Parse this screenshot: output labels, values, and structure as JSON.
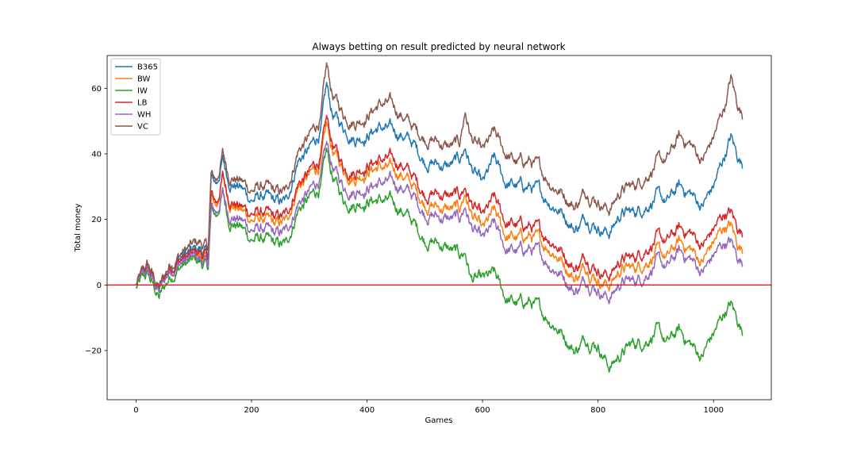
{
  "chart_data": {
    "type": "line",
    "title": "Always betting on result predicted by neural network",
    "xlabel": "Games",
    "ylabel": "Total money",
    "xlim": [
      -50,
      1100
    ],
    "ylim": [
      -35,
      70
    ],
    "xticks": [
      0,
      200,
      400,
      600,
      800,
      1000
    ],
    "yticks": [
      -20,
      0,
      20,
      40,
      60
    ],
    "ytick_labels": [
      "−20",
      "0",
      "20",
      "40",
      "60"
    ],
    "grid": false,
    "legend_position": "top-left",
    "reference_line": {
      "y": 0,
      "color": "#d62728"
    },
    "series": [
      {
        "name": "B365",
        "color": "#1f77b4",
        "x": [
          0,
          20,
          40,
          60,
          80,
          100,
          110,
          125,
          130,
          140,
          150,
          160,
          180,
          200,
          220,
          240,
          260,
          280,
          300,
          320,
          330,
          340,
          360,
          380,
          400,
          420,
          440,
          460,
          480,
          500,
          520,
          540,
          560,
          570,
          580,
          600,
          620,
          640,
          660,
          680,
          700,
          720,
          740,
          760,
          780,
          800,
          820,
          840,
          860,
          880,
          900,
          920,
          940,
          960,
          980,
          990,
          1000,
          1020,
          1030,
          1040,
          1050
        ],
        "y": [
          0,
          5,
          -2,
          6,
          9,
          10,
          11,
          9,
          32,
          31,
          38,
          32,
          30,
          26,
          27,
          25,
          25,
          38,
          41,
          47,
          60,
          52,
          48,
          45,
          46,
          48,
          47,
          46,
          43,
          38,
          37,
          36,
          38,
          42,
          36,
          30,
          38,
          31,
          30,
          30,
          28,
          25,
          22,
          17,
          21,
          18,
          16,
          22,
          22,
          24,
          27,
          25,
          30,
          28,
          24,
          27,
          30,
          40,
          45,
          40,
          37
        ]
      },
      {
        "name": "BW",
        "color": "#ff7f0e",
        "x": [
          0,
          20,
          40,
          60,
          80,
          100,
          110,
          125,
          130,
          140,
          150,
          160,
          180,
          200,
          220,
          240,
          260,
          280,
          300,
          320,
          330,
          340,
          360,
          380,
          400,
          420,
          440,
          460,
          480,
          500,
          520,
          540,
          560,
          570,
          580,
          600,
          620,
          640,
          660,
          680,
          700,
          720,
          740,
          760,
          780,
          800,
          820,
          840,
          860,
          880,
          900,
          920,
          940,
          960,
          980,
          990,
          1000,
          1020,
          1030,
          1040,
          1050
        ],
        "y": [
          0,
          4,
          -2,
          5,
          8,
          9,
          9,
          7,
          26,
          24,
          33,
          26,
          23,
          20,
          20,
          18,
          19,
          30,
          33,
          37,
          48,
          41,
          35,
          33,
          35,
          36,
          35,
          34,
          30,
          25,
          24,
          23,
          23,
          28,
          22,
          16,
          22,
          15,
          14,
          15,
          13,
          11,
          7,
          2,
          6,
          2,
          0,
          5,
          5,
          7,
          10,
          8,
          13,
          11,
          7,
          10,
          13,
          18,
          18,
          13,
          11
        ]
      },
      {
        "name": "IW",
        "color": "#2ca02c",
        "x": [
          0,
          20,
          40,
          60,
          80,
          100,
          110,
          125,
          130,
          140,
          150,
          160,
          180,
          200,
          220,
          240,
          260,
          280,
          300,
          320,
          330,
          340,
          360,
          380,
          400,
          420,
          440,
          460,
          480,
          500,
          520,
          540,
          560,
          570,
          580,
          600,
          620,
          640,
          660,
          680,
          700,
          720,
          740,
          760,
          780,
          800,
          820,
          840,
          860,
          880,
          900,
          920,
          940,
          960,
          980,
          990,
          1000,
          1020,
          1030,
          1040,
          1050
        ],
        "y": [
          -1,
          3,
          -4,
          3,
          6,
          7,
          7,
          5,
          22,
          21,
          28,
          20,
          18,
          14,
          14,
          12,
          12,
          23,
          26,
          30,
          40,
          33,
          26,
          25,
          26,
          26,
          25,
          23,
          19,
          14,
          13,
          11,
          9,
          10,
          2,
          1,
          3,
          -4,
          -6,
          -5,
          -8,
          -11,
          -15,
          -20,
          -16,
          -18,
          -25,
          -21,
          -18,
          -17,
          -14,
          -18,
          -14,
          -18,
          -22,
          -18,
          -15,
          -8,
          -6,
          -10,
          -14
        ]
      },
      {
        "name": "LB",
        "color": "#d62728",
        "x": [
          0,
          20,
          40,
          60,
          80,
          100,
          110,
          125,
          130,
          140,
          150,
          160,
          180,
          200,
          220,
          240,
          260,
          280,
          300,
          320,
          330,
          340,
          360,
          380,
          400,
          420,
          440,
          460,
          480,
          500,
          520,
          540,
          560,
          570,
          580,
          600,
          620,
          640,
          660,
          680,
          700,
          720,
          740,
          760,
          780,
          800,
          820,
          840,
          860,
          880,
          900,
          920,
          940,
          960,
          980,
          990,
          1000,
          1020,
          1030,
          1040,
          1050
        ],
        "y": [
          0,
          5,
          -1,
          6,
          8,
          9,
          10,
          8,
          27,
          25,
          33,
          27,
          24,
          22,
          22,
          20,
          21,
          31,
          34,
          39,
          50,
          43,
          36,
          35,
          37,
          38,
          38,
          37,
          33,
          28,
          28,
          27,
          27,
          30,
          25,
          20,
          26,
          19,
          18,
          18,
          16,
          14,
          10,
          5,
          9,
          5,
          3,
          8,
          8,
          11,
          14,
          13,
          17,
          16,
          12,
          14,
          17,
          22,
          22,
          18,
          16
        ]
      },
      {
        "name": "WH",
        "color": "#9467bd",
        "x": [
          0,
          20,
          40,
          60,
          80,
          100,
          110,
          125,
          130,
          140,
          150,
          160,
          180,
          200,
          220,
          240,
          260,
          280,
          300,
          320,
          330,
          340,
          360,
          380,
          400,
          420,
          440,
          460,
          480,
          500,
          520,
          540,
          560,
          570,
          580,
          600,
          620,
          640,
          660,
          680,
          700,
          720,
          740,
          760,
          780,
          800,
          820,
          840,
          860,
          880,
          900,
          920,
          940,
          960,
          980,
          990,
          1000,
          1020,
          1030,
          1040,
          1050
        ],
        "y": [
          0,
          4,
          -2,
          5,
          7,
          8,
          8,
          6,
          23,
          22,
          28,
          22,
          20,
          17,
          17,
          15,
          16,
          25,
          28,
          33,
          42,
          36,
          30,
          29,
          30,
          31,
          31,
          30,
          27,
          22,
          21,
          20,
          20,
          24,
          18,
          13,
          18,
          11,
          10,
          11,
          9,
          6,
          3,
          -2,
          2,
          -1,
          -4,
          1,
          1,
          3,
          7,
          5,
          10,
          8,
          4,
          6,
          9,
          13,
          13,
          9,
          7
        ]
      },
      {
        "name": "VC",
        "color": "#8c564b",
        "x": [
          0,
          20,
          40,
          60,
          80,
          100,
          110,
          125,
          130,
          140,
          150,
          160,
          180,
          200,
          220,
          240,
          260,
          280,
          300,
          320,
          330,
          340,
          360,
          380,
          400,
          420,
          440,
          460,
          480,
          500,
          520,
          540,
          560,
          570,
          580,
          600,
          620,
          640,
          660,
          680,
          700,
          720,
          740,
          760,
          780,
          800,
          820,
          840,
          860,
          880,
          900,
          920,
          940,
          960,
          980,
          990,
          1000,
          1020,
          1030,
          1040,
          1050
        ],
        "y": [
          0,
          6,
          -1,
          7,
          10,
          12,
          13,
          11,
          33,
          32,
          40,
          34,
          32,
          29,
          30,
          28,
          28,
          41,
          45,
          51,
          66,
          58,
          52,
          50,
          52,
          55,
          55,
          52,
          48,
          45,
          44,
          42,
          43,
          53,
          45,
          40,
          46,
          40,
          37,
          38,
          35,
          31,
          28,
          24,
          29,
          26,
          23,
          29,
          30,
          33,
          37,
          38,
          45,
          43,
          38,
          41,
          45,
          55,
          63,
          56,
          52
        ]
      }
    ]
  }
}
